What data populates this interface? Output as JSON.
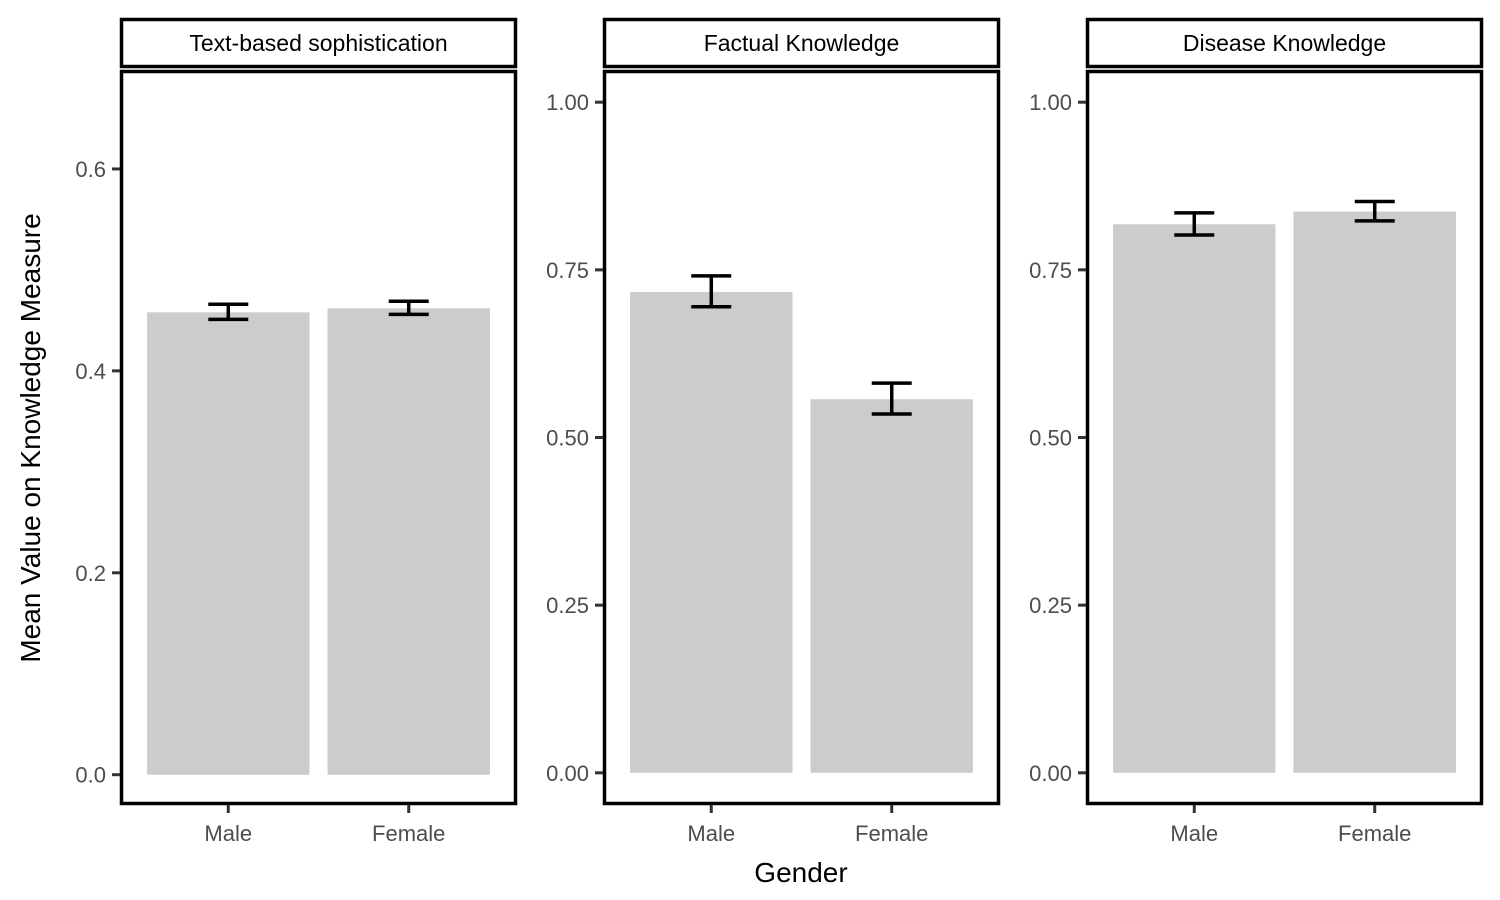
{
  "chart_data": {
    "type": "bar",
    "facet_variable": "measure",
    "xlabel": "Gender",
    "ylabel": "Mean Value on Knowledge Measure",
    "bar_color": "#cccccc",
    "errorbar_color": "#000000",
    "panels": [
      {
        "title": "Text-based sophistication",
        "categories": [
          "Male",
          "Female"
        ],
        "values": [
          0.458,
          0.462
        ],
        "error_low": [
          0.451,
          0.456
        ],
        "error_high": [
          0.466,
          0.469
        ],
        "yticks": [
          0.0,
          0.2,
          0.4,
          0.6
        ],
        "ytick_labels": [
          "0.0",
          "0.2",
          "0.4",
          "0.6"
        ],
        "ylim": [
          -0.03,
          0.698
        ]
      },
      {
        "title": "Factual Knowledge",
        "categories": [
          "Male",
          "Female"
        ],
        "values": [
          0.717,
          0.557
        ],
        "error_low": [
          0.695,
          0.535
        ],
        "error_high": [
          0.741,
          0.581
        ],
        "yticks": [
          0.0,
          0.25,
          0.5,
          0.75,
          1.0
        ],
        "ytick_labels": [
          "0.00",
          "0.25",
          "0.50",
          "0.75",
          "1.00"
        ],
        "ylim": [
          -0.048,
          1.048
        ]
      },
      {
        "title": "Disease Knowledge",
        "categories": [
          "Male",
          "Female"
        ],
        "values": [
          0.818,
          0.837
        ],
        "error_low": [
          0.802,
          0.823
        ],
        "error_high": [
          0.835,
          0.852
        ],
        "yticks": [
          0.0,
          0.25,
          0.5,
          0.75,
          1.0
        ],
        "ytick_labels": [
          "0.00",
          "0.25",
          "0.50",
          "0.75",
          "1.00"
        ],
        "ylim": [
          -0.048,
          1.048
        ]
      }
    ]
  }
}
